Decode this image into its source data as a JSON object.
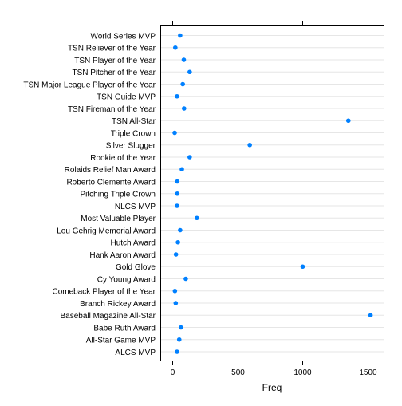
{
  "chart_data": {
    "type": "scatter",
    "subtype": "dotplot",
    "title": "",
    "xlabel": "Freq",
    "ylabel": "",
    "xlim": [
      -90,
      1620
    ],
    "xticks": [
      0,
      500,
      1000,
      1500
    ],
    "grid": "horizontal",
    "point_color": "#0080ff",
    "categories": [
      "World Series MVP",
      "TSN Reliever of the Year",
      "TSN Player of the Year",
      "TSN Pitcher of the Year",
      "TSN Major League Player of the Year",
      "TSN Guide MVP",
      "TSN Fireman of the Year",
      "TSN All-Star",
      "Triple Crown",
      "Silver Slugger",
      "Rookie of the Year",
      "Rolaids Relief Man Award",
      "Roberto Clemente Award",
      "Pitching Triple Crown",
      "NLCS MVP",
      "Most Valuable Player",
      "Lou Gehrig Memorial Award",
      "Hutch Award",
      "Hank Aaron Award",
      "Gold Glove",
      "Cy Young Award",
      "Comeback Player of the Year",
      "Branch Rickey Award",
      "Baseball Magazine All-Star",
      "Babe Ruth Award",
      "All-Star Game MVP",
      "ALCS MVP"
    ],
    "values": [
      62,
      25,
      90,
      135,
      82,
      38,
      92,
      1350,
      20,
      595,
      135,
      75,
      40,
      40,
      38,
      190,
      62,
      45,
      30,
      1000,
      105,
      22,
      28,
      1520,
      68,
      55,
      38
    ]
  }
}
